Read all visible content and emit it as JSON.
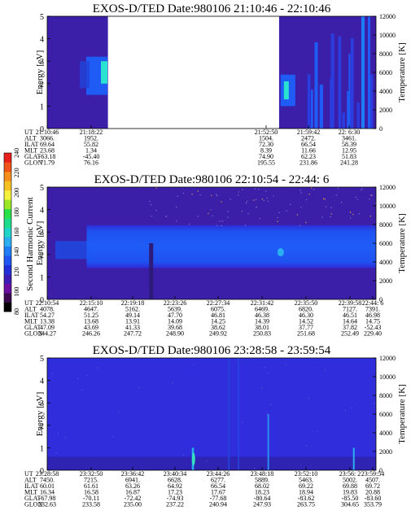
{
  "colorbar": {
    "label": "Second Harmonic Current",
    "ticks": [
      "240",
      "220",
      "200",
      "180",
      "160",
      "140",
      "120",
      "100",
      "80"
    ],
    "colors": [
      "#000000",
      "#3b0a4f",
      "#6a0fa0",
      "#3b1db5",
      "#2230d8",
      "#1f55f0",
      "#1c7df5",
      "#2aaef0",
      "#22d4c8",
      "#1fdc8c",
      "#28e04a",
      "#9be625",
      "#f5f03a",
      "#f5c022",
      "#f58e1c",
      "#f0541a",
      "#e8201c"
    ]
  },
  "panels": [
    {
      "title": "EXOS-D/TED   Date:980106  21:10:46 - 22:10:46",
      "y_label": "Energy [eV]",
      "y2_label": "Temperature [K]",
      "y_ticks": [
        "0",
        "1",
        "2",
        "3",
        "4",
        "5"
      ],
      "y2_ticks": [
        "0",
        "2000",
        "4000",
        "6000",
        "8000",
        "10000",
        "12000"
      ],
      "info_labels": [
        "UT",
        "ALT",
        "ILAT",
        "MLT",
        "GLAT",
        "GLON"
      ],
      "info_columns": [
        [
          "21:10:46",
          "3066.",
          "69.64",
          "23.68",
          "-63.18",
          "71.79"
        ],
        [
          "21:18:22",
          "1952.",
          "55.82",
          "1.34",
          "-45.40",
          "76.16"
        ],
        [
          "21:52:50",
          "1504.",
          "72.30",
          "8.39",
          "74.90",
          "195.55"
        ],
        [
          "21:59:42",
          "2472.",
          "66.54",
          "11.66",
          "62.23",
          "231.86"
        ],
        [
          "22: 6:30",
          "3461.",
          "58.39",
          "12.95",
          "51.83",
          "241.28"
        ]
      ]
    },
    {
      "title": "EXOS-D/TED   Date:980106  22:10:54 - 22:44: 6",
      "y_label": "Energy [eV]",
      "y2_label": "Temperature [K]",
      "y_ticks": [
        "0",
        "1",
        "2",
        "3",
        "4",
        "5"
      ],
      "y2_ticks": [
        "0",
        "2000",
        "4000",
        "6000",
        "8000",
        "10000",
        "12000"
      ],
      "info_labels": [
        "UT",
        "ALT",
        "ILAT",
        "MLT",
        "GLAT",
        "GLON"
      ],
      "info_columns": [
        [
          "22:10:54",
          "4078.",
          "54.27",
          "13.38",
          "47.09",
          "244.27"
        ],
        [
          "22:15:10",
          "4647.",
          "51.25",
          "13.68",
          "43.69",
          "246.26"
        ],
        [
          "22:19:18",
          "5162.",
          "49.14",
          "13.91",
          "41.33",
          "247.72"
        ],
        [
          "22:23:26",
          "5639.",
          "47.70",
          "14.09",
          "39.68",
          "248.90"
        ],
        [
          "22:27:34",
          "6075.",
          "46.81",
          "14.25",
          "38.62",
          "249.92"
        ],
        [
          "22:31:42",
          "6469.",
          "46.38",
          "14.39",
          "38.01",
          "250.83"
        ],
        [
          "22:35:50",
          "6820.",
          "46.30",
          "14.52",
          "37.77",
          "251.68"
        ],
        [
          "22:39:58",
          "7127.",
          "46.51",
          "14.64",
          "37.82",
          "252.49"
        ],
        [
          "22:44: 6",
          "7391.",
          "46.98",
          "14.75",
          "-52.43",
          "229.40"
        ]
      ]
    },
    {
      "title": "EXOS-D/TED   Date:980106  23:28:58 - 23:59:54",
      "y_label": "Energy [eV]",
      "y2_label": "Temperature [K]",
      "y_ticks": [
        "0",
        "1",
        "2",
        "3",
        "4",
        "5"
      ],
      "y2_ticks": [
        "0",
        "2000",
        "4000",
        "6000",
        "8000",
        "10000",
        "12000"
      ],
      "info_labels": [
        "UT",
        "ALT",
        "ILAT",
        "MLT",
        "GLAT",
        "GLON"
      ],
      "info_columns": [
        [
          "23:28:58",
          "7450.",
          "60.01",
          "16.34",
          "-67.98",
          "232.63"
        ],
        [
          "23:32:50",
          "7215.",
          "61.61",
          "16.58",
          "-70.11",
          "233.58"
        ],
        [
          "23:36:42",
          "6941.",
          "63.26",
          "16.87",
          "-72.42",
          "235.00"
        ],
        [
          "23:40:34",
          "6628.",
          "64.92",
          "17.23",
          "-74.93",
          "237.22"
        ],
        [
          "23:44:26",
          "6277.",
          "66.54",
          "17.67",
          "-77.68",
          "240.94"
        ],
        [
          "23:48:18",
          "5889.",
          "68.02",
          "18.23",
          "-80.64",
          "247.93"
        ],
        [
          "23:52:10",
          "5463.",
          "69.22",
          "18.94",
          "-83.62",
          "263.75"
        ],
        [
          "23:56: 2",
          "5002.",
          "69.88",
          "19.83",
          "-85.50",
          "304.65"
        ],
        [
          "23:59:54",
          "4507.",
          "69.72",
          "20.88",
          "-83.60",
          "353.79"
        ]
      ]
    }
  ],
  "chart_data": [
    {
      "type": "heatmap",
      "title": "EXOS-D/TED   Date:980106  21:10:46 - 22:10:46",
      "ylabel": "Energy [eV]",
      "y2label": "Temperature [K]",
      "ylim": [
        0,
        5
      ],
      "y2lim": [
        0,
        12000
      ],
      "x_range": [
        "21:10:46",
        "22:10:46"
      ],
      "data_gaps": [
        [
          "21:20:00",
          "21:52:40"
        ]
      ],
      "notes_data": "ion energy spectrogram, strong flux near 2.5 eV around 21:18 and 21:52-22:06"
    },
    {
      "type": "heatmap",
      "title": "EXOS-D/TED   Date:980106  22:10:54 - 22:44: 6",
      "ylabel": "Energy [eV]",
      "y2label": "Temperature [K]",
      "ylim": [
        0,
        5
      ],
      "y2lim": [
        0,
        12000
      ],
      "x_range": [
        "22:10:54",
        "22:44: 6"
      ],
      "band_eV": [
        1.5,
        3.2
      ]
    },
    {
      "type": "heatmap",
      "title": "EXOS-D/TED   Date:980106  23:28:58 - 23:59:54",
      "ylabel": "Energy [eV]",
      "y2label": "Temperature [K]",
      "ylim": [
        0,
        5
      ],
      "y2lim": [
        0,
        12000
      ],
      "x_range": [
        "23:28:58",
        "23:59:54"
      ],
      "spikes": [
        "23:38:00",
        "23:41:30",
        "23:45:10",
        "23:57:40"
      ]
    }
  ]
}
